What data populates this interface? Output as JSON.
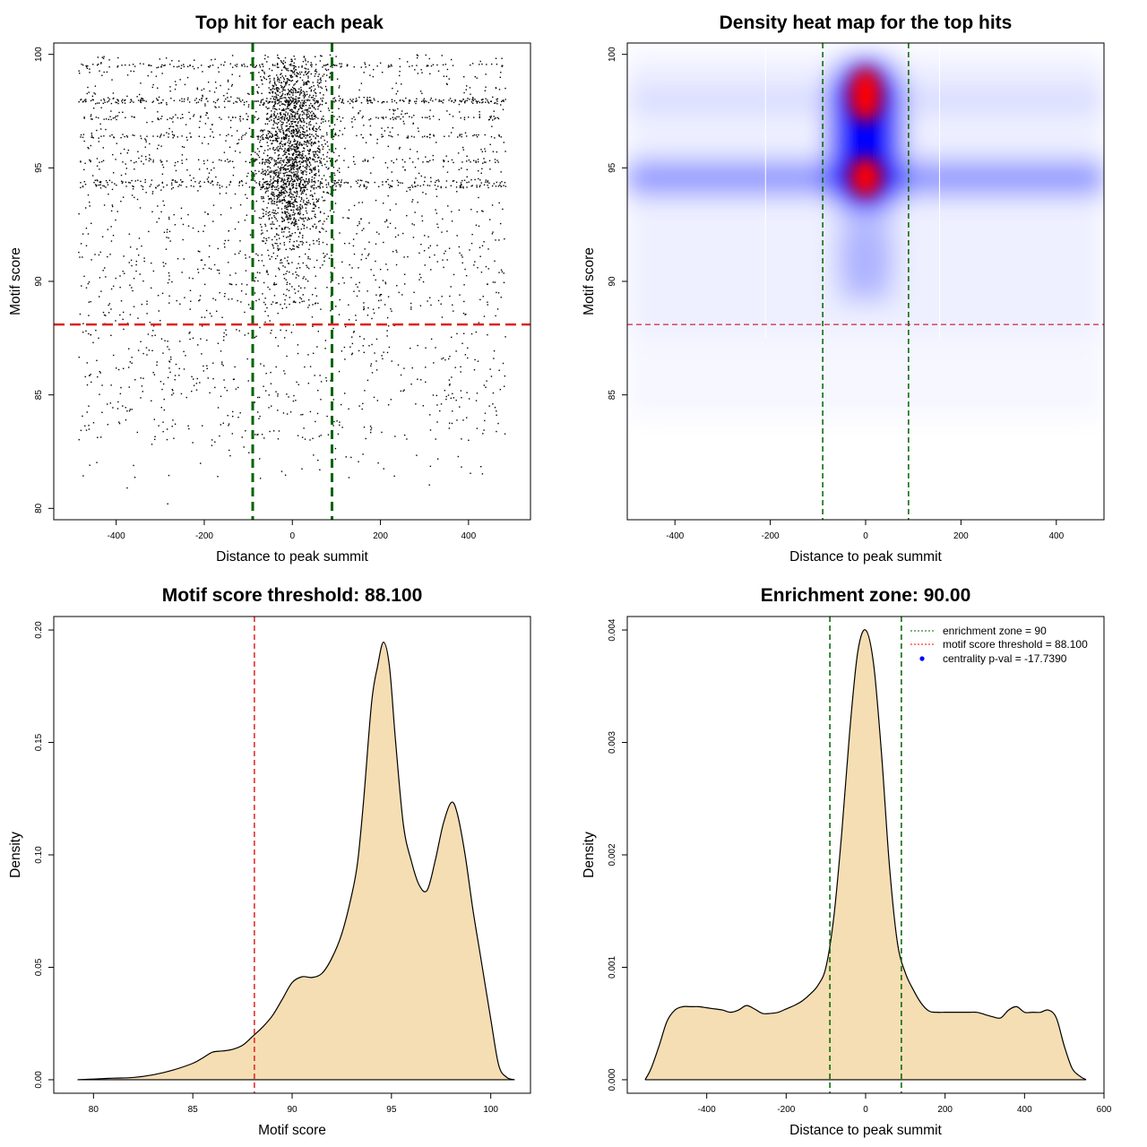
{
  "chart_data": [
    {
      "type": "scatter",
      "title": "Top hit for each peak",
      "xlabel": "Distance to peak summit",
      "ylabel": "Motif score",
      "xlim": [
        -500,
        500
      ],
      "ylim": [
        79.5,
        100.5
      ],
      "x_ticks": [
        -400,
        -200,
        0,
        200,
        400
      ],
      "y_ticks": [
        80,
        85,
        90,
        95,
        100
      ],
      "enrichment_zone": [
        -90,
        90
      ],
      "score_threshold": 88.1,
      "point_color": "#000000",
      "vline_color": "#006400",
      "hline_color": "#dd2222",
      "points_note": "about 7000 peak top hits; dense band centered on 0 between scores 88 and 100, sparse below threshold",
      "points_sample": [
        [
          -3,
          95.1
        ],
        [
          12,
          94.6
        ],
        [
          -20,
          97.6
        ],
        [
          35,
          96.2
        ],
        [
          -45,
          93.8
        ],
        [
          8,
          98.4
        ],
        [
          60,
          94.9
        ],
        [
          -70,
          92.4
        ],
        [
          -250,
          95.2
        ],
        [
          300,
          94.4
        ],
        [
          -420,
          97.9
        ],
        [
          410,
          98.1
        ],
        [
          -130,
          91.2
        ],
        [
          150,
          90.6
        ],
        [
          -330,
          89.0
        ],
        [
          380,
          89.4
        ],
        [
          -470,
          85.8
        ],
        [
          455,
          84.6
        ],
        [
          -180,
          86.4
        ],
        [
          220,
          87.1
        ],
        [
          -460,
          81.9
        ],
        [
          -375,
          80.9
        ],
        [
          -283,
          80.2
        ],
        [
          -110,
          82.7
        ],
        [
          195,
          82.0
        ],
        [
          400,
          83.0
        ],
        [
          280,
          84.6
        ],
        [
          -20,
          84.2
        ]
      ]
    },
    {
      "type": "heatmap",
      "title": "Density heat map for the top hits",
      "xlabel": "Distance to peak summit",
      "ylabel": "Motif score",
      "xlim": [
        -500,
        500
      ],
      "ylim": [
        79.5,
        100.5
      ],
      "x_ticks": [
        -400,
        -200,
        0,
        200,
        400
      ],
      "y_ticks": [
        85,
        90,
        95,
        100
      ],
      "enrichment_zone": [
        -90,
        90
      ],
      "score_threshold": 88.1,
      "color_scale": [
        "#ffffff",
        "#0000ff",
        "#ff0000"
      ],
      "hotspots": [
        {
          "x": 0,
          "y": 94.6,
          "level": "red"
        },
        {
          "x": 0,
          "y": 98.2,
          "level": "red"
        },
        {
          "x": 0,
          "y": 96.4,
          "level": "blue"
        },
        {
          "x": 0,
          "y": 91.0,
          "level": "light blue"
        }
      ]
    },
    {
      "type": "area",
      "title": "Motif score threshold: 88.100",
      "xlabel": "Motif score",
      "ylabel": "Density",
      "xlim": [
        78,
        102
      ],
      "ylim": [
        -0.006,
        0.206
      ],
      "x_ticks": [
        80,
        85,
        90,
        95,
        100
      ],
      "y_ticks": [
        0.0,
        0.05,
        0.1,
        0.15,
        0.2
      ],
      "y_tick_labels": [
        "0.00",
        "0.05",
        "0.10",
        "0.15",
        "0.20"
      ],
      "threshold": 88.1,
      "fill_color": "#f5deb3",
      "x": [
        79.2,
        80,
        81,
        82,
        83,
        84,
        85,
        85.5,
        86,
        86.5,
        87,
        87.5,
        88,
        88.5,
        89,
        89.5,
        90,
        90.5,
        91,
        91.5,
        92,
        92.5,
        93,
        93.3,
        93.6,
        94,
        94.3,
        94.6,
        94.9,
        95.2,
        95.6,
        96,
        96.4,
        96.8,
        97.2,
        97.6,
        98,
        98.3,
        98.7,
        99.1,
        99.5,
        100,
        100.4,
        100.8,
        101.2
      ],
      "y": [
        0,
        0.0003,
        0.0007,
        0.001,
        0.0022,
        0.0043,
        0.0073,
        0.0097,
        0.0123,
        0.0128,
        0.0135,
        0.0153,
        0.0192,
        0.0233,
        0.0284,
        0.0357,
        0.0432,
        0.0458,
        0.0455,
        0.0473,
        0.0541,
        0.0649,
        0.0822,
        0.097,
        0.1243,
        0.1676,
        0.1838,
        0.1946,
        0.1838,
        0.1514,
        0.1135,
        0.0973,
        0.0865,
        0.0843,
        0.0973,
        0.1135,
        0.1232,
        0.1189,
        0.1005,
        0.0757,
        0.0541,
        0.027,
        0.0065,
        0.0011,
        0
      ]
    },
    {
      "type": "area",
      "title": "Enrichment zone: 90.00",
      "xlabel": "Distance to peak summit",
      "ylabel": "Density",
      "xlim": [
        -600,
        600
      ],
      "ylim": [
        -0.00012,
        0.00412
      ],
      "x_ticks": [
        -400,
        -200,
        0,
        200,
        400,
        600
      ],
      "y_ticks": [
        0.0,
        0.001,
        0.002,
        0.003,
        0.004
      ],
      "y_tick_labels": [
        "0.000",
        "0.001",
        "0.002",
        "0.003",
        "0.004"
      ],
      "enrichment_zone": [
        -90,
        90
      ],
      "fill_color": "#f5deb3",
      "legend": [
        {
          "label": "enrichment zone = 90",
          "style": "dotted",
          "color": "#006400"
        },
        {
          "label": "motif score threshold = 88.100",
          "style": "dotted",
          "color": "#ff0000"
        },
        {
          "label": "centrality p-val = -17.7390",
          "style": "point",
          "color": "#0000ff"
        }
      ],
      "legend_position": "top-right",
      "x": [
        -555,
        -540,
        -520,
        -500,
        -480,
        -460,
        -440,
        -420,
        -400,
        -380,
        -360,
        -340,
        -320,
        -300,
        -280,
        -260,
        -240,
        -220,
        -200,
        -180,
        -160,
        -140,
        -120,
        -100,
        -80,
        -60,
        -40,
        -20,
        0,
        20,
        40,
        60,
        80,
        100,
        120,
        140,
        160,
        180,
        200,
        220,
        240,
        260,
        280,
        300,
        320,
        340,
        360,
        380,
        400,
        420,
        440,
        460,
        480,
        500,
        520,
        540,
        555
      ],
      "y": [
        0,
        0.0001,
        0.0003,
        0.00052,
        0.00062,
        0.00065,
        0.00065,
        0.00065,
        0.00064,
        0.00063,
        0.00062,
        0.0006,
        0.00062,
        0.00066,
        0.00063,
        0.00059,
        0.00059,
        0.0006,
        0.00063,
        0.00066,
        0.0007,
        0.00076,
        0.00084,
        0.001,
        0.00145,
        0.0022,
        0.0031,
        0.0038,
        0.004,
        0.0037,
        0.0029,
        0.0019,
        0.00122,
        0.00095,
        0.0008,
        0.00068,
        0.00061,
        0.0006,
        0.0006,
        0.0006,
        0.0006,
        0.0006,
        0.0006,
        0.00058,
        0.00056,
        0.00055,
        0.00062,
        0.00065,
        0.0006,
        0.0006,
        0.0006,
        0.00062,
        0.00055,
        0.0003,
        0.0001,
        3e-05,
        0
      ]
    }
  ]
}
